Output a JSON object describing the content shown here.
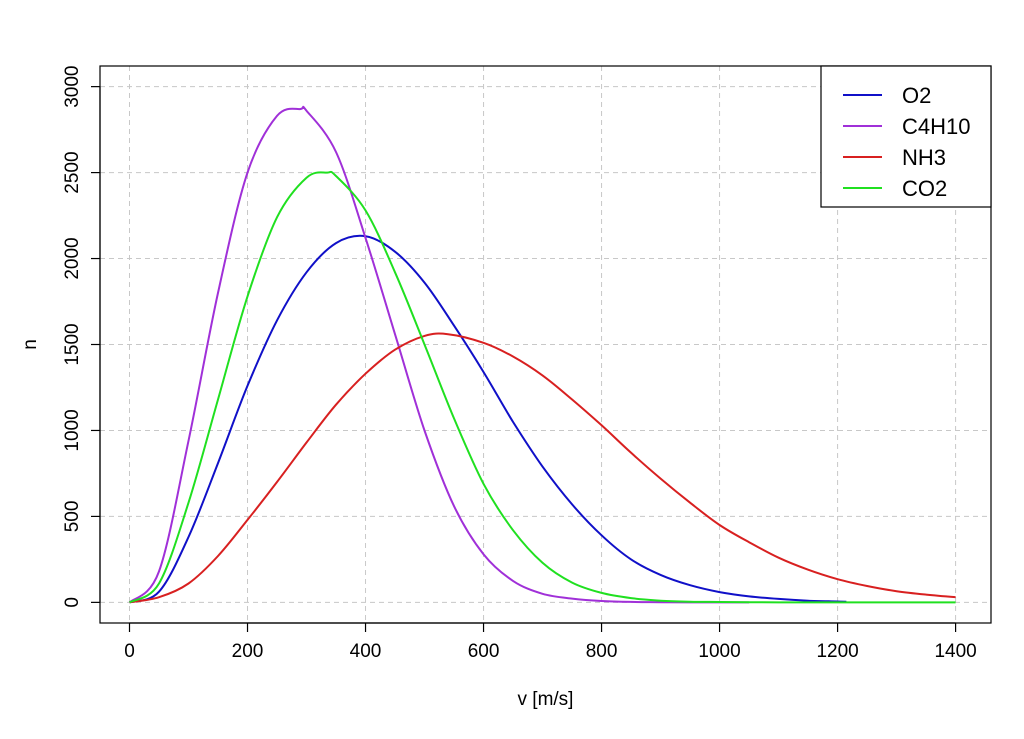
{
  "chart_data": {
    "type": "line",
    "title": "",
    "xlabel": "v [m/s]",
    "ylabel": "n",
    "xlim": [
      -50,
      1460
    ],
    "ylim": [
      -120,
      3120
    ],
    "xticks": [
      0,
      200,
      400,
      600,
      800,
      1000,
      1200,
      1400
    ],
    "yticks": [
      0,
      500,
      1000,
      1500,
      2000,
      2500,
      3000
    ],
    "grid": true,
    "legend_position": "top-right",
    "series": [
      {
        "name": "O2",
        "color": "#1010c8",
        "x": [
          0,
          50,
          100,
          150,
          200,
          250,
          300,
          350,
          400,
          450,
          500,
          550,
          600,
          650,
          700,
          750,
          800,
          850,
          900,
          950,
          1000,
          1050,
          1100,
          1150,
          1200,
          1215
        ],
        "y": [
          0,
          62,
          380,
          810,
          1260,
          1640,
          1920,
          2090,
          2130,
          2040,
          1860,
          1610,
          1340,
          1050,
          790,
          570,
          390,
          250,
          160,
          100,
          60,
          35,
          20,
          10,
          5,
          4
        ]
      },
      {
        "name": "C4H10",
        "color": "#a030d8",
        "x": [
          0,
          50,
          100,
          150,
          200,
          250,
          290,
          300,
          350,
          400,
          450,
          500,
          550,
          600,
          650,
          700,
          750,
          800,
          850,
          900,
          950,
          1000,
          1050
        ],
        "y": [
          0,
          180,
          940,
          1800,
          2500,
          2830,
          2870,
          2860,
          2620,
          2120,
          1560,
          1000,
          560,
          280,
          125,
          50,
          22,
          8,
          3,
          1,
          0,
          0,
          0
        ]
      },
      {
        "name": "NH3",
        "color": "#d82020",
        "x": [
          0,
          50,
          100,
          150,
          200,
          250,
          300,
          350,
          400,
          450,
          500,
          540,
          600,
          650,
          700,
          750,
          800,
          850,
          900,
          950,
          1000,
          1050,
          1100,
          1150,
          1200,
          1250,
          1300,
          1350,
          1400
        ],
        "y": [
          0,
          30,
          110,
          270,
          480,
          700,
          930,
          1150,
          1330,
          1470,
          1550,
          1560,
          1510,
          1430,
          1320,
          1180,
          1030,
          870,
          720,
          580,
          450,
          350,
          260,
          190,
          135,
          95,
          65,
          45,
          30
        ]
      },
      {
        "name": "CO2",
        "color": "#20e020",
        "x": [
          0,
          50,
          100,
          150,
          200,
          250,
          300,
          335,
          350,
          400,
          450,
          500,
          550,
          600,
          650,
          700,
          750,
          800,
          850,
          900,
          950,
          1000,
          1050,
          1100,
          1150,
          1200,
          1250,
          1300,
          1350,
          1400
        ],
        "y": [
          0,
          110,
          580,
          1180,
          1780,
          2240,
          2470,
          2500,
          2480,
          2280,
          1920,
          1500,
          1070,
          690,
          420,
          230,
          115,
          55,
          25,
          10,
          4,
          2,
          1,
          0,
          0,
          0,
          0,
          0,
          0,
          0
        ]
      }
    ]
  }
}
